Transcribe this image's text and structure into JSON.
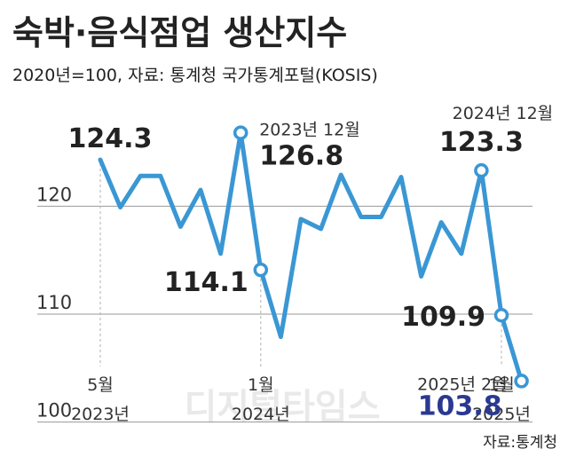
{
  "chart_data": {
    "type": "line",
    "title": "숙박·음식점업 생산지수",
    "subtitle": "2020년=100, 자료: 통계청 국가통계포털(KOSIS)",
    "source": "자료:통계청",
    "watermark": "디지털타임스",
    "line_color": "#3a97d4",
    "highlight_color": "#2a3990",
    "y_ticks": [
      100,
      110,
      120
    ],
    "ylim": [
      98,
      131
    ],
    "grid": true,
    "x_labels": [
      {
        "index": 0,
        "month": "5월",
        "year": "2023년"
      },
      {
        "index": 8,
        "month": "1월",
        "year": "2024년"
      },
      {
        "index": 20,
        "month": "1월",
        "year": "2025년"
      }
    ],
    "series": [
      {
        "values": [
          124.3,
          119.9,
          122.8,
          122.8,
          118.1,
          121.5,
          115.6,
          126.8,
          114.1,
          107.9,
          118.8,
          117.9,
          122.9,
          119.0,
          119.0,
          122.7,
          113.5,
          118.5,
          115.6,
          123.3,
          109.9,
          103.8
        ]
      }
    ],
    "annotations": [
      {
        "index": 0,
        "value": "124.3",
        "date": ""
      },
      {
        "index": 7,
        "value": "126.8",
        "date": "2023년 12월"
      },
      {
        "index": 8,
        "value": "114.1",
        "date": ""
      },
      {
        "index": 19,
        "value": "123.3",
        "date": "2024년 12월"
      },
      {
        "index": 20,
        "value": "109.9",
        "date": ""
      },
      {
        "index": 21,
        "value": "103.8",
        "date": "2025년 2월"
      }
    ]
  }
}
